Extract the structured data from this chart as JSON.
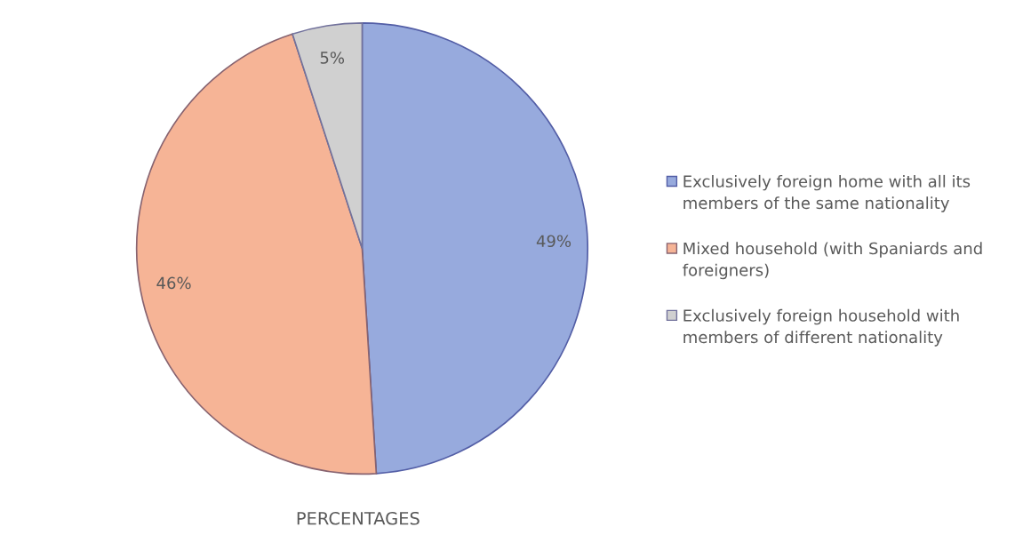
{
  "chart_data": {
    "type": "pie",
    "title": "PERCENTAGES",
    "categories": [
      "Exclusively foreign home with all its members of the same nationality",
      "Mixed household (with Spaniards and foreigners)",
      "Exclusively foreign household with members of different nationality"
    ],
    "values": [
      49,
      46,
      5
    ],
    "colors": [
      "#97aadd",
      "#f6b496",
      "#d0d0d0"
    ],
    "value_labels": [
      "49%",
      "46%",
      "5%"
    ],
    "legend": "right"
  }
}
